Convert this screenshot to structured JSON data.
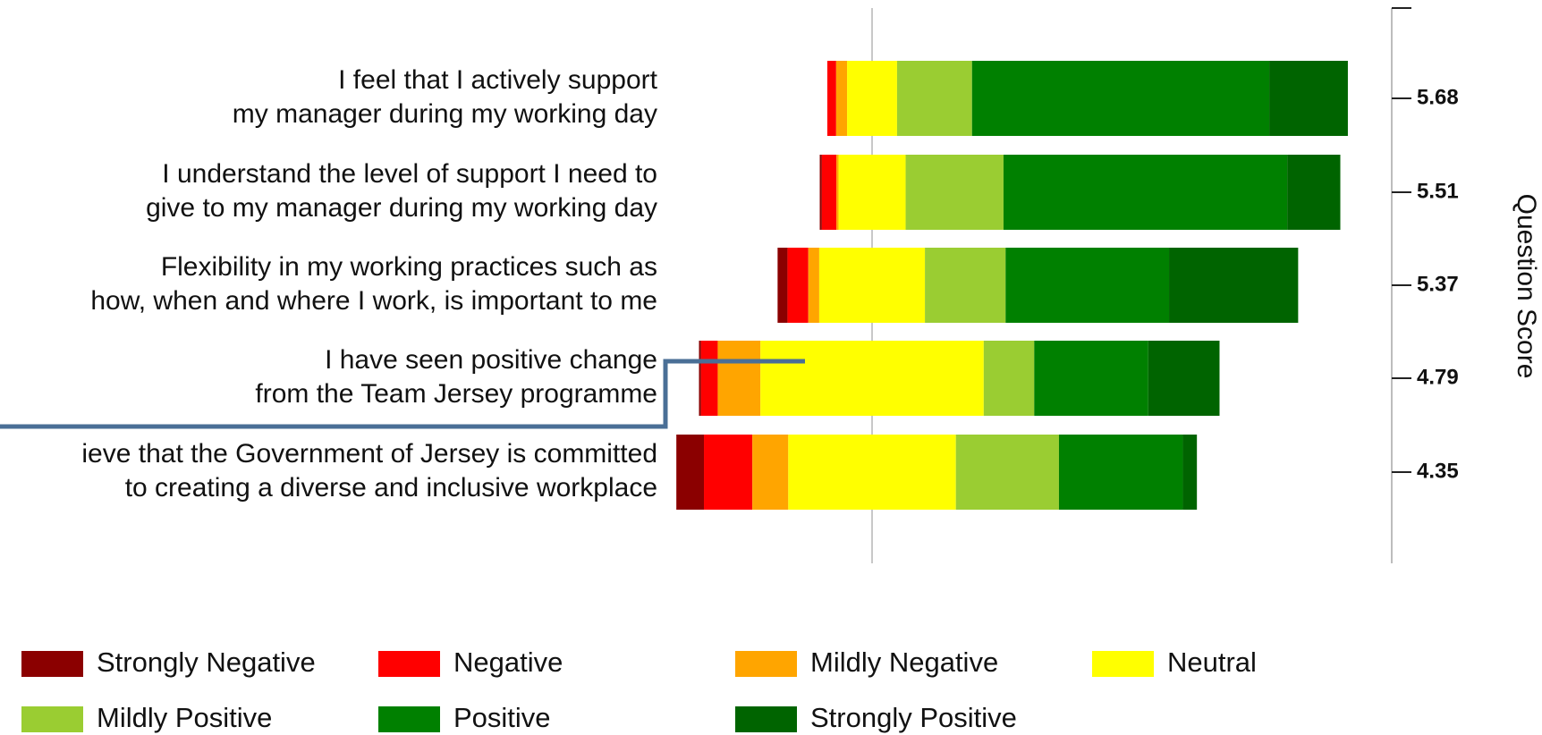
{
  "chart_data": {
    "type": "diverging_bar",
    "categories": [
      [
        "I feel that I actively support",
        "my manager during my working day"
      ],
      [
        "I understand the level of support I need to",
        "give to my manager during my working day"
      ],
      [
        "Flexibility in my working practices such as",
        "how, when and where I work, is important to me"
      ],
      [
        "I have seen positive change",
        "from the Team Jersey programme"
      ],
      [
        "ieve that the Government of Jersey is committed",
        "to creating a diverse and inclusive workplace"
      ]
    ],
    "series": [
      {
        "name": "Strongly Negative",
        "color": "#8b0000",
        "values": [
          0,
          0.4,
          1.9,
          0.4,
          5.3
        ]
      },
      {
        "name": "Negative",
        "color": "#ff0000",
        "values": [
          1.7,
          2.8,
          4.0,
          3.2,
          9.3
        ]
      },
      {
        "name": "Mildly Negative",
        "color": "#ffa500",
        "values": [
          2.1,
          0.4,
          2.1,
          8.2,
          6.9
        ]
      },
      {
        "name": "Neutral",
        "color": "#ffff00",
        "values": [
          9.6,
          12.9,
          20.3,
          42.9,
          32.2
        ]
      },
      {
        "name": "Mildly Positive",
        "color": "#9acd32",
        "values": [
          14.4,
          18.8,
          15.5,
          9.7,
          19.8
        ]
      },
      {
        "name": "Positive",
        "color": "#008000",
        "values": [
          57.1,
          54.5,
          31.4,
          21.9,
          23.8
        ]
      },
      {
        "name": "Strongly Positive",
        "color": "#006400",
        "values": [
          15.1,
          10.2,
          24.8,
          13.7,
          2.7
        ]
      }
    ],
    "scores": [
      5.68,
      5.51,
      5.37,
      4.79,
      4.35
    ],
    "score_axis_label": "Question Score"
  }
}
